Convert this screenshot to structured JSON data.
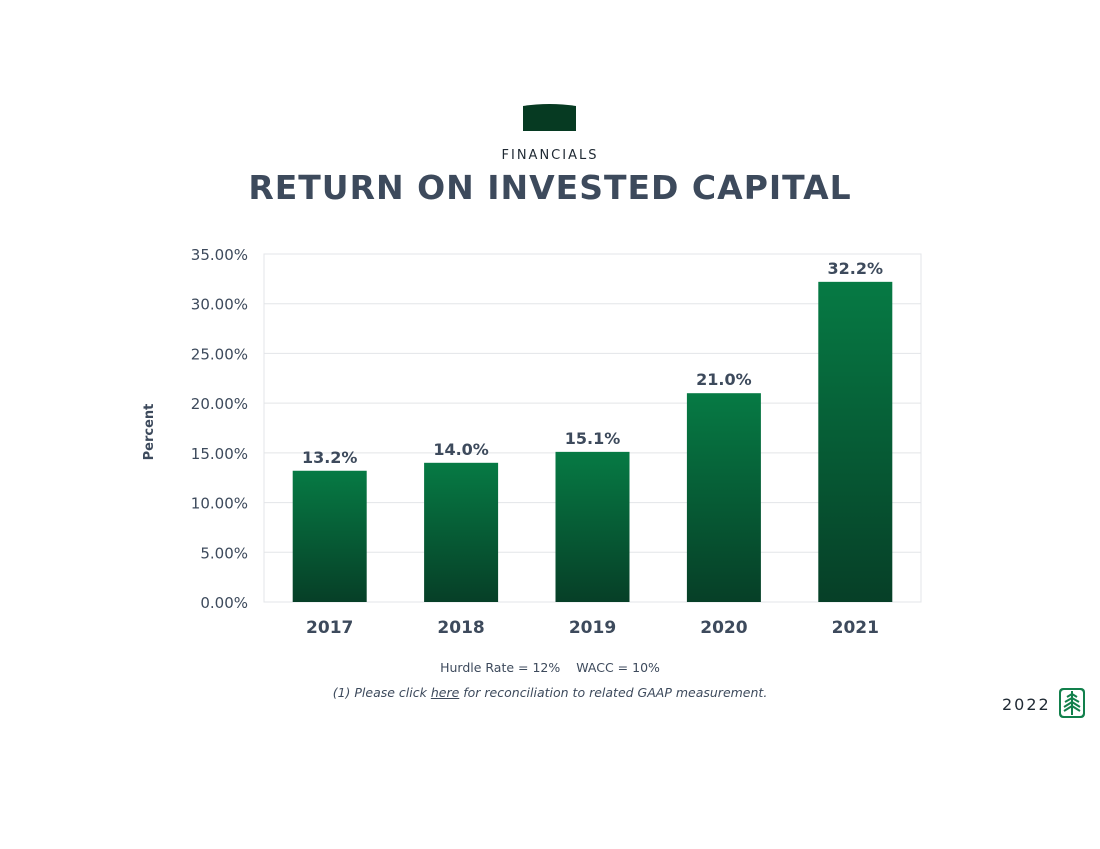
{
  "header": {
    "section_label": "FINANCIALS",
    "title": "RETURN ON INVESTED CAPITAL"
  },
  "chart_data": {
    "type": "bar",
    "title": "RETURN ON INVESTED CAPITAL",
    "xlabel": "",
    "ylabel": "Percent",
    "categories": [
      "2017",
      "2018",
      "2019",
      "2020",
      "2021"
    ],
    "values": [
      13.2,
      14.0,
      15.1,
      21.0,
      32.2
    ],
    "data_labels": [
      "13.2%",
      "14.0%",
      "15.1%",
      "21.0%",
      "32.2%"
    ],
    "ylim": [
      0,
      35
    ],
    "yticks": [
      0,
      5,
      10,
      15,
      20,
      25,
      30,
      35
    ],
    "ytick_labels": [
      "0.00%",
      "5.00%",
      "10.00%",
      "15.00%",
      "20.00%",
      "25.00%",
      "30.00%",
      "35.00%"
    ],
    "grid": true,
    "legend": "none",
    "bar_color_top": "#067a44",
    "bar_color_bottom": "#063f27"
  },
  "footnotes": {
    "hurdle_rate": "Hurdle Rate = 12%",
    "wacc": "WACC = 10%",
    "link_prefix": "(1) Please click ",
    "link_text": "here",
    "link_suffix": " for reconciliation to related GAAP measurement."
  },
  "footer": {
    "year": "2022",
    "logo_icon": "tree-logo-icon"
  },
  "colors": {
    "brand_dark_green": "#063a22",
    "brand_green": "#12804c",
    "title_slate": "#3d4a5c"
  }
}
